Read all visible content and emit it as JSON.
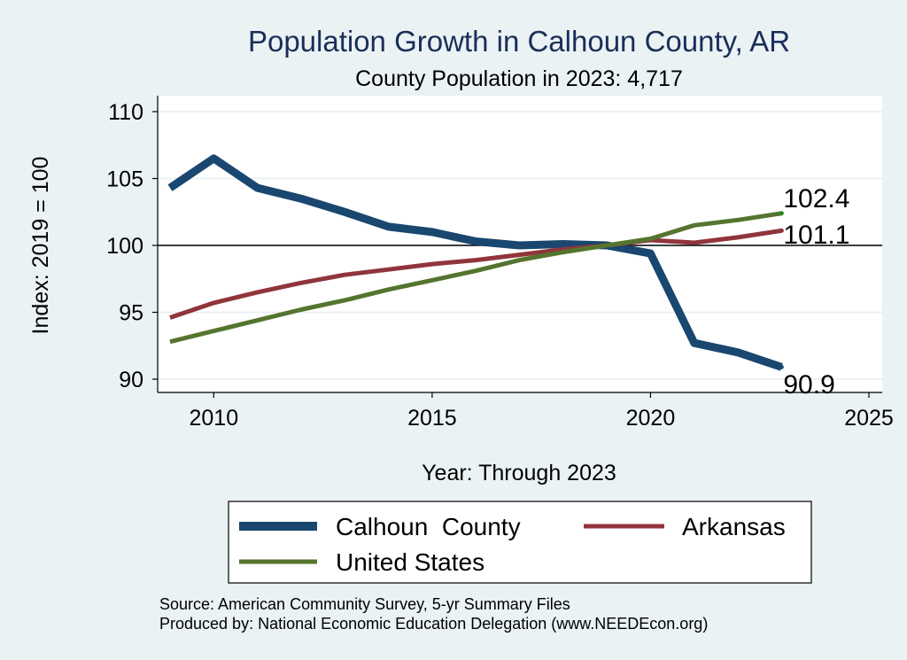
{
  "chart_data": {
    "type": "line",
    "title": "Population Growth in Calhoun County, AR",
    "subtitle": "County Population in 2023: 4,717",
    "xlabel": "Year: Through 2023",
    "ylabel": "Index: 2019 = 100",
    "xlim": [
      2009,
      2025
    ],
    "ylim": [
      89.5,
      111
    ],
    "xticks": [
      2010,
      2015,
      2020,
      2025
    ],
    "yticks": [
      90,
      95,
      100,
      105,
      110
    ],
    "reference_line": 100,
    "x": [
      2009,
      2010,
      2011,
      2012,
      2013,
      2014,
      2015,
      2016,
      2017,
      2018,
      2019,
      2020,
      2021,
      2022,
      2023
    ],
    "series": [
      {
        "name": "Calhoun  County",
        "color": "#1a476f",
        "values": [
          104.3,
          106.5,
          104.3,
          103.5,
          102.5,
          101.4,
          101.0,
          100.3,
          100.0,
          100.1,
          100.0,
          99.4,
          92.7,
          92.0,
          90.9
        ],
        "end_label": "90.9"
      },
      {
        "name": "Arkansas",
        "color": "#90353b",
        "values": [
          94.6,
          95.7,
          96.5,
          97.2,
          97.8,
          98.2,
          98.6,
          98.9,
          99.3,
          99.7,
          100.0,
          100.4,
          100.2,
          100.6,
          101.1
        ],
        "end_label": "101.1"
      },
      {
        "name": "United States",
        "color": "#55752f",
        "values": [
          92.8,
          93.6,
          94.4,
          95.2,
          95.9,
          96.7,
          97.4,
          98.1,
          98.9,
          99.5,
          100.0,
          100.5,
          101.5,
          101.9,
          102.4
        ],
        "end_label": "102.4"
      }
    ],
    "legend": {
      "position": "bottom",
      "entries": [
        "Calhoun  County",
        "Arkansas",
        "United States"
      ]
    }
  },
  "notes": {
    "source": "Source: American Community Survey, 5-yr Summary Files",
    "produced_by": "Produced by: National Economic Education Delegation (www.NEEDEcon.org)"
  }
}
